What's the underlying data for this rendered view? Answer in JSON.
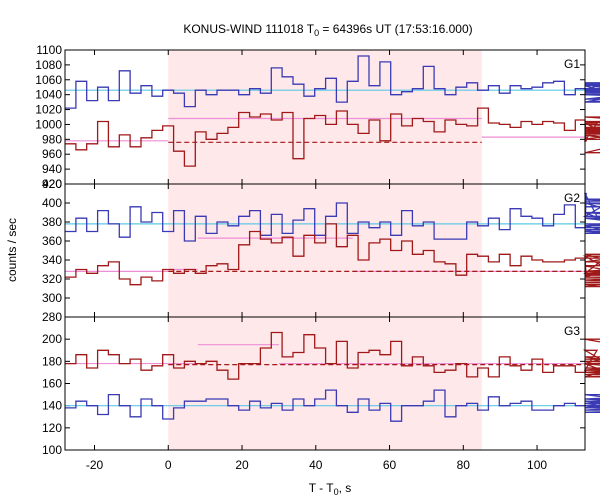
{
  "chart_data": {
    "type": "line",
    "title": "KONUS-WIND 111018 T",
    "title_sub": "0",
    "title_rest": " = 64396s UT (17:53:16.000)",
    "xlabel": "T - T",
    "xlabel_sub": "0",
    "xlabel_rest": ", s",
    "ylabel": "counts / sec",
    "xlim": [
      -28,
      113
    ],
    "x_ticks": [
      -20,
      0,
      20,
      40,
      60,
      80,
      100
    ],
    "x_tick_labels": [
      "-20",
      "0",
      "20",
      "40",
      "60",
      "80",
      "100"
    ],
    "shaded_interval": [
      0,
      85
    ],
    "colors": {
      "blue_series": "#3a3ab4",
      "red_series": "#a01818",
      "background_fit": "#5cc8e6",
      "pink_fit": "#ee8ed6",
      "shade": "#ffe8ea",
      "dashed": "#a01818"
    },
    "panels": [
      {
        "name": "G1",
        "ylim": [
          920,
          1100
        ],
        "yticks": [
          920,
          940,
          960,
          980,
          1000,
          1020,
          1040,
          1060,
          1080,
          1100
        ],
        "ytick_labels": [
          "920",
          "940",
          "960",
          "980",
          "1000",
          "1020",
          "1040",
          "1060",
          "1080",
          "1100"
        ],
        "series": [
          {
            "color_key": "blue_series",
            "bin_start": -28,
            "bin_width": 2.944,
            "values": [
              1022,
              1058,
              1032,
              1050,
              1032,
              1072,
              1042,
              1052,
              1038,
              1046,
              1042,
              1024,
              1046,
              1040,
              1046,
              1046,
              1040,
              1048,
              1042,
              1076,
              1064,
              1054,
              1038,
              1048,
              1062,
              1030,
              1058,
              1092,
              1052,
              1084,
              1040,
              1044,
              1048,
              1078,
              1048,
              1040,
              1050,
              1056,
              1046,
              1052,
              1042,
              1052,
              1048,
              1050,
              1056,
              1058,
              1040,
              1048,
              1046,
              1052,
              1054,
              1046,
              1052,
              1030,
              1048,
              1046,
              1034,
              1048,
              1034,
              1042,
              1048,
              1044,
              1048,
              1056,
              1044,
              1040,
              1030,
              1048
            ]
          },
          {
            "color_key": "red_series",
            "bin_start": -28,
            "bin_width": 2.944,
            "values": [
              974,
              966,
              974,
              1004,
              970,
              986,
              970,
              982,
              992,
              998,
              964,
              944,
              990,
              980,
              988,
              996,
              1016,
              1010,
              1014,
              1006,
              1016,
              954,
              1008,
              1012,
              1000,
              1018,
              1000,
              988,
              1006,
              978,
              1014,
              998,
              1008,
              1004,
              990,
              1006,
              1000,
              998,
              1022,
              1002,
              1000,
              996,
              1004,
              1000,
              1004,
              1002,
              992,
              1006,
              978,
              1002,
              986,
              980,
              990,
              994,
              988,
              992,
              986,
              962,
              996,
              994,
              1004,
              990,
              1010,
              996,
              1000,
              988,
              1004,
              1000
            ]
          }
        ],
        "fits": [
          {
            "color_key": "background_fit",
            "style": "solid",
            "segments": [
              [
                -28,
                113,
                1046
              ]
            ]
          },
          {
            "color_key": "pink_fit",
            "style": "solid",
            "segments": [
              [
                -28,
                0,
                978
              ],
              [
                0,
                85,
                1008
              ],
              [
                85,
                113,
                983
              ]
            ]
          },
          {
            "color_key": "dashed",
            "style": "dashed",
            "segments": [
              [
                0,
                85,
                976
              ]
            ]
          }
        ]
      },
      {
        "name": "G2",
        "ylim": [
          280,
          420
        ],
        "yticks": [
          280,
          300,
          320,
          340,
          360,
          380,
          400,
          420
        ],
        "ytick_labels": [
          "280",
          "300",
          "320",
          "340",
          "360",
          "380",
          "400",
          "420"
        ],
        "series": [
          {
            "color_key": "blue_series",
            "bin_start": -28,
            "bin_width": 2.944,
            "values": [
              370,
              384,
              370,
              392,
              378,
              364,
              396,
              380,
              390,
              370,
              392,
              360,
              386,
              368,
              380,
              376,
              386,
              392,
              366,
              388,
              368,
              382,
              394,
              366,
              386,
              400,
              368,
              380,
              374,
              380,
              366,
              392,
              376,
              380,
              362,
              362,
              362,
              380,
              376,
              384,
              372,
              394,
              386,
              384,
              376,
              388,
              398,
              374,
              410,
              386,
              400,
              390,
              370,
              384,
              376,
              384,
              374,
              402,
              404,
              396,
              400,
              390,
              378,
              372,
              368,
              384,
              386,
              378
            ]
          },
          {
            "color_key": "red_series",
            "bin_start": -28,
            "bin_width": 2.944,
            "values": [
              322,
              330,
              326,
              334,
              338,
              320,
              314,
              322,
              318,
              330,
              326,
              330,
              326,
              334,
              336,
              330,
              356,
              370,
              362,
              358,
              364,
              344,
              366,
              358,
              378,
              354,
              366,
              340,
              358,
              362,
              350,
              360,
              346,
              350,
              338,
              336,
              324,
              346,
              344,
              338,
              346,
              334,
              344,
              340,
              338,
              338,
              340,
              342,
              322,
              326,
              344,
              324,
              338,
              346,
              328,
              334,
              314,
              312,
              326,
              318,
              320,
              316,
              320,
              318,
              322,
              318,
              326,
              342
            ]
          }
        ],
        "fits": [
          {
            "color_key": "background_fit",
            "style": "solid",
            "segments": [
              [
                -28,
                113,
                378
              ]
            ]
          },
          {
            "color_key": "pink_fit",
            "style": "solid",
            "segments": [
              [
                -28,
                0,
                328
              ],
              [
                0,
                8,
                330
              ],
              [
                8,
                50,
                363
              ],
              [
                50,
                113,
                328
              ]
            ]
          },
          {
            "color_key": "dashed",
            "style": "dashed",
            "segments": [
              [
                0,
                113,
                328
              ]
            ]
          }
        ]
      },
      {
        "name": "G3",
        "ylim": [
          100,
          220
        ],
        "yticks": [
          100,
          120,
          140,
          160,
          180,
          200
        ],
        "ytick_labels": [
          "100",
          "120",
          "140",
          "160",
          "180",
          "200"
        ],
        "series": [
          {
            "color_key": "blue_series",
            "bin_start": -28,
            "bin_width": 2.944,
            "values": [
              138,
              144,
              140,
              132,
              150,
              140,
              130,
              146,
              140,
              128,
              138,
              144,
              144,
              146,
              146,
              140,
              136,
              144,
              138,
              142,
              136,
              146,
              140,
              146,
              154,
              140,
              134,
              146,
              136,
              142,
              126,
              140,
              140,
              144,
              154,
              130,
              140,
              142,
              136,
              148,
              140,
              142,
              144,
              136,
              136,
              140,
              142,
              140,
              140,
              138,
              142,
              138,
              144,
              136,
              140,
              138,
              146,
              150,
              138,
              146,
              138,
              140,
              142,
              144,
              136,
              144,
              134,
              140
            ]
          },
          {
            "color_key": "red_series",
            "bin_start": -28,
            "bin_width": 2.944,
            "values": [
              178,
              186,
              174,
              190,
              186,
              178,
              182,
              172,
              176,
              186,
              174,
              180,
              178,
              180,
              172,
              164,
              178,
              178,
              192,
              206,
              184,
              188,
              204,
              192,
              178,
              198,
              174,
              188,
              190,
              186,
              198,
              176,
              184,
              176,
              170,
              172,
              178,
              166,
              174,
              166,
              184,
              176,
              172,
              182,
              170,
              176,
              176,
              170,
              172,
              190,
              178,
              166,
              178,
              178,
              172,
              178,
              200,
              184,
              168,
              178,
              166,
              170,
              180,
              182,
              180,
              174,
              168,
              180
            ]
          }
        ],
        "fits": [
          {
            "color_key": "background_fit",
            "style": "solid",
            "segments": [
              [
                -28,
                113,
                140
              ]
            ]
          },
          {
            "color_key": "pink_fit",
            "style": "solid",
            "segments": [
              [
                -28,
                0,
                178
              ],
              [
                0,
                8,
                178
              ],
              [
                8,
                30,
                195
              ],
              [
                30,
                113,
                178
              ]
            ]
          },
          {
            "color_key": "dashed",
            "style": "dashed",
            "segments": [
              [
                0,
                113,
                177
              ]
            ]
          }
        ]
      }
    ]
  }
}
